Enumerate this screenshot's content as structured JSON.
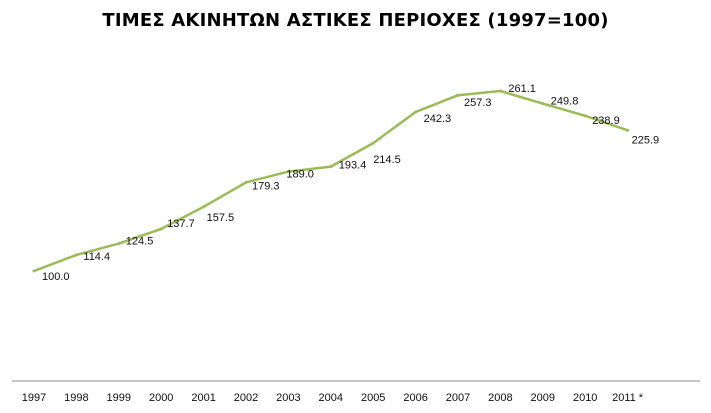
{
  "chart_data": {
    "type": "line",
    "title": "ΤΙΜΕΣ ΑΚΙΝΗΤΩΝ ΑΣΤΙΚΕΣ ΠΕΡΙΟΧΕΣ (1997=100)",
    "xlabel": "",
    "ylabel": "",
    "categories": [
      "1997",
      "1998",
      "1999",
      "2000",
      "2001",
      "2002",
      "2003",
      "2004",
      "2005",
      "2006",
      "2007",
      "2008",
      "2009",
      "2010",
      "2011 *"
    ],
    "values": [
      100.0,
      114.4,
      124.5,
      137.7,
      157.5,
      179.3,
      189.0,
      193.4,
      214.5,
      242.3,
      257.3,
      261.1,
      249.8,
      238.9,
      225.9
    ],
    "data_labels": [
      "100.0",
      "114.4",
      "124.5",
      "137.7",
      "157.5",
      "179.3",
      "189.0",
      "193.4",
      "214.5",
      "242.3",
      "257.3",
      "261.1",
      "249.8",
      "238.9",
      "225.9"
    ],
    "line_color": "#9bbb59",
    "axis_color": "#8c8c8c",
    "grid": false,
    "legend": "none"
  }
}
